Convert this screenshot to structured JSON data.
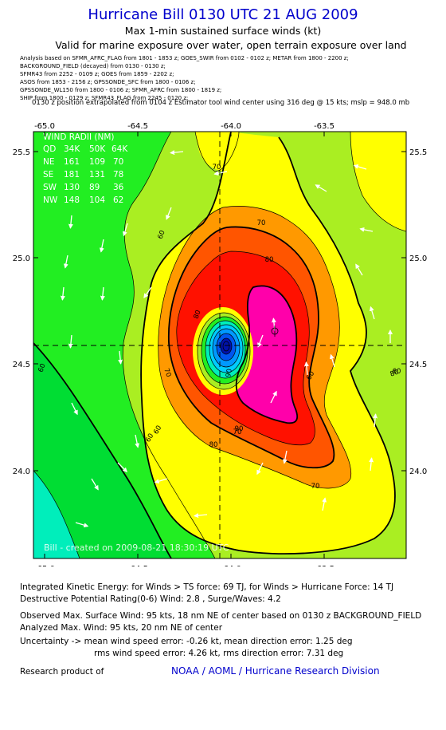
{
  "header": {
    "title": "Hurricane Bill 0130 UTC 21 AUG 2009",
    "subtitle": "Max 1-min sustained surface winds (kt)",
    "valid": "Valid for marine exposure over water, open terrain exposure over land"
  },
  "analysis_lines": [
    "Analysis based on  SFMR_AFRC_FLAG from 1801 - 1853 z;  GOES_SWIR from 0102 - 0102 z;  METAR from 1800 - 2200 z;",
    "BACKGROUND_FIELD (decayed) from 0130 - 0130 z;",
    "SFMR43 from 2252 - 0109 z;  GOES from 1859 - 2202 z;",
    "ASOS from 1853 - 2156 z;  GPSSONDE_SFC from 1800 - 0106 z;",
    "GPSSONDE_WL150 from 1800 - 0106 z;  SFMR_AFRC from 1800 - 1819 z;",
    "SHIP from 1800 - 0129 z;  SFMR43_FLAG from 2245 - 0120 z;"
  ],
  "position_note": "0130 z position extrapolated from 0104 z Estimator tool wind center using 316 deg @ 15 kts; mslp = 948.0 mb",
  "map": {
    "lon_ticks": [
      "-65.0",
      "-64.5",
      "-64.0",
      "-63.5"
    ],
    "lat_ticks": [
      "25.5",
      "25.0",
      "24.5",
      "24.0"
    ],
    "watermark": "Bill - created on 2009-08-21 18:30:19 UTC",
    "contour_labels": [
      "60",
      "70",
      "80",
      "60",
      "70",
      "80",
      "90",
      "60",
      "70",
      "80",
      "60",
      "70",
      "60",
      "80",
      "70",
      "90",
      "60"
    ],
    "wind_radii": {
      "title": "WIND RADII (NM)",
      "header": [
        "QD",
        "34K",
        "50K",
        "64K"
      ],
      "rows": [
        [
          "NE",
          "161",
          "109",
          "70"
        ],
        [
          "SE",
          "181",
          "131",
          "78"
        ],
        [
          "SW",
          "130",
          "89",
          "36"
        ],
        [
          "NW",
          "148",
          "104",
          "62"
        ]
      ]
    },
    "colors": {
      "green_dark": "#00dd33",
      "green": "#22ee22",
      "yellow_green": "#aaee22",
      "yellow": "#ffff00",
      "orange": "#ff9900",
      "orange_red": "#ff5500",
      "red": "#ff1100",
      "magenta": "#ff00aa",
      "teal": "#00eebb"
    }
  },
  "stats": {
    "ike": "Integrated Kinetic Energy:  for Winds > TS force: 69 TJ,  for Winds > Hurricane Force: 14 TJ",
    "dpr": "Destructive Potential Rating(0-6)   Wind: 2.8 , Surge/Waves: 4.2",
    "observed": "Observed Max. Surface Wind: 95 kts, 18 nm NE of center based on 0130 z BACKGROUND_FIELD",
    "analyzed": "Analyzed Max. Wind: 95 kts, 20 nm NE of center",
    "uncertainty1": "Uncertainty -> mean wind speed error:  -0.26 kt,   mean direction error: 1.25 deg",
    "uncertainty2": "rms wind speed error: 4.26 kt,   rms direction error: 7.31 deg"
  },
  "footer": {
    "label": "Research product of",
    "link": "NOAA / AOML / Hurricane Research Division"
  }
}
